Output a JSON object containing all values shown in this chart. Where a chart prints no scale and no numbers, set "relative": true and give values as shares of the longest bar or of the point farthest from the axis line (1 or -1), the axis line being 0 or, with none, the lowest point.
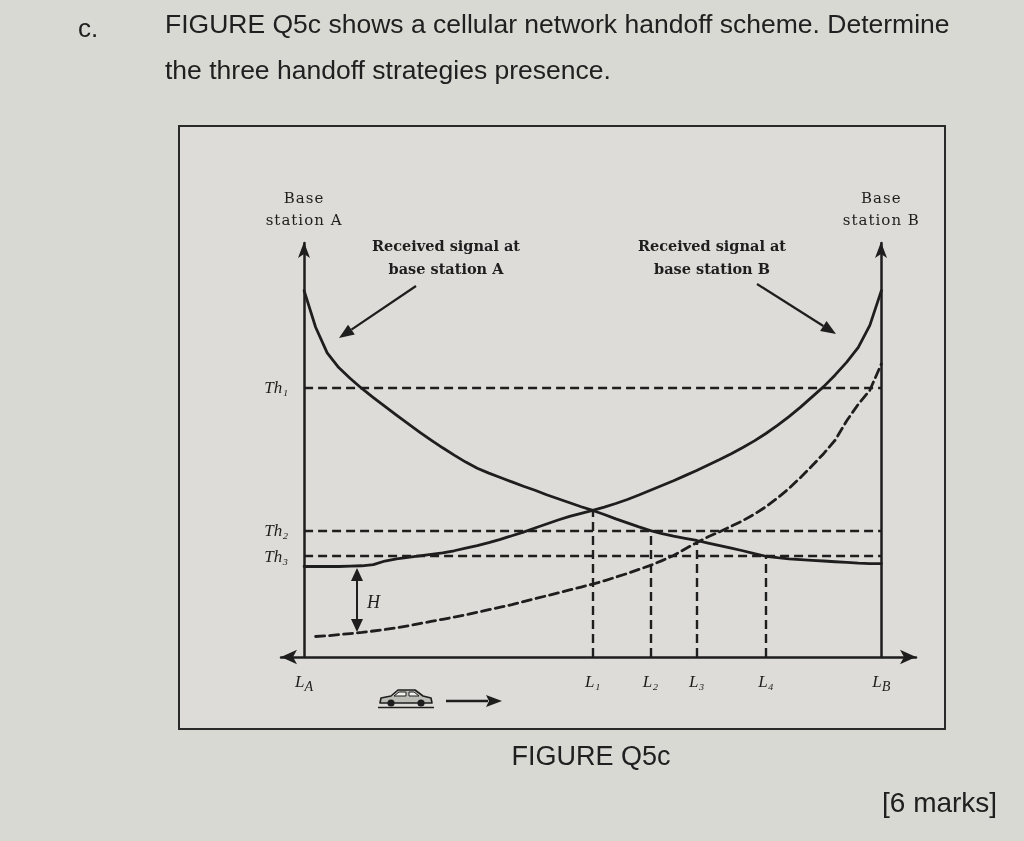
{
  "chart_data": {
    "type": "line",
    "title": "FIGURE Q5c shows a cellular network handoff scheme. Determine the three handoff strategies presence.",
    "ylabel": "Base station A",
    "y2label": "Base station B",
    "relative": true,
    "categories": [
      null,
      null,
      "L$_{A}$",
      null,
      null,
      null,
      null,
      null,
      null,
      null,
      null,
      null,
      null,
      null,
      null,
      null,
      null,
      null,
      null,
      null,
      null,
      null,
      null,
      null,
      null,
      null,
      null,
      "L₁",
      null,
      null,
      null,
      null,
      "L₂",
      null,
      null,
      null,
      "L₃",
      null,
      null,
      null,
      null,
      null,
      "L₄",
      null,
      null,
      null,
      null,
      null,
      null,
      null,
      null,
      null,
      "L$_{B}$",
      null,
      null,
      null
    ],
    "series": [
      {
        "color": "#1e1e1e",
        "values": [
          null,
          null,
          1.0,
          0.9,
          0.83,
          0.79,
          0.76,
          0.733,
          0.708,
          0.684,
          0.66,
          0.637,
          0.614,
          0.592,
          0.571,
          0.551,
          0.532,
          0.515,
          0.502,
          0.49,
          0.478,
          0.466,
          0.455,
          0.443,
          0.432,
          0.421,
          0.41,
          0.4,
          0.389,
          0.377,
          0.366,
          0.355,
          0.345,
          0.337,
          0.33,
          0.324,
          0.318,
          0.311,
          0.304,
          0.297,
          0.29,
          0.282,
          0.275,
          0.271,
          0.268,
          0.266,
          0.264,
          0.262,
          0.26,
          0.258,
          0.256,
          0.255,
          0.255,
          null,
          null,
          null
        ]
      },
      {
        "color": "#1e1e1e",
        "values": [
          null,
          null,
          0.247,
          0.247,
          0.247,
          0.247,
          0.248,
          0.249,
          0.252,
          0.262,
          0.268,
          0.272,
          0.276,
          0.28,
          0.284,
          0.29,
          0.297,
          0.304,
          0.312,
          0.321,
          0.331,
          0.341,
          0.352,
          0.363,
          0.374,
          0.384,
          0.392,
          0.4,
          0.409,
          0.419,
          0.43,
          0.442,
          0.455,
          0.468,
          0.481,
          0.495,
          0.509,
          0.524,
          0.539,
          0.555,
          0.572,
          0.59,
          0.61,
          0.632,
          0.656,
          0.682,
          0.71,
          0.738,
          0.77,
          0.805,
          0.845,
          0.905,
          1.0,
          null,
          null,
          null
        ]
      },
      {
        "color": "#1e1e1e",
        "line_style": "dashed",
        "values": [
          null,
          null,
          null,
          0.056,
          0.058,
          0.061,
          0.064,
          0.067,
          0.071,
          0.075,
          0.08,
          0.085,
          0.091,
          0.097,
          0.103,
          0.109,
          0.115,
          0.122,
          0.129,
          0.136,
          0.143,
          0.151,
          0.159,
          0.167,
          0.175,
          0.183,
          0.191,
          0.199,
          0.208,
          0.218,
          0.228,
          0.239,
          0.25,
          0.263,
          0.277,
          0.295,
          0.312,
          0.328,
          0.342,
          0.357,
          0.372,
          0.39,
          0.41,
          0.434,
          0.46,
          0.49,
          0.522,
          0.555,
          0.592,
          0.645,
          0.69,
          0.728,
          0.8,
          null,
          null,
          null
        ]
      }
    ],
    "ref_lines": [
      {
        "axis": "y",
        "value": 0.735,
        "label": "Th₁",
        "line_style": "dashed",
        "color": "#1e1e1e"
      },
      {
        "axis": "y",
        "value": 0.345,
        "label": "Th₂",
        "line_style": "dashed",
        "color": "#1e1e1e"
      },
      {
        "axis": "y",
        "value": 0.275,
        "label": "Th₃",
        "line_style": "dashed",
        "color": "#1e1e1e"
      },
      {
        "axis": "x",
        "value": "L₁",
        "line_style": "dashed",
        "color": "#1e1e1e"
      },
      {
        "axis": "x",
        "value": "L₂",
        "line_style": "dashed",
        "color": "#1e1e1e"
      },
      {
        "axis": "x",
        "value": "L₃",
        "line_style": "dashed",
        "color": "#1e1e1e"
      },
      {
        "axis": "x",
        "value": "L₄",
        "line_style": "dashed",
        "color": "#1e1e1e"
      }
    ],
    "annotations": [
      "Received signal at base station A",
      "Received signal at base station B",
      "H",
      "c.",
      "FIGURE Q5c",
      "[6 marks]"
    ]
  }
}
